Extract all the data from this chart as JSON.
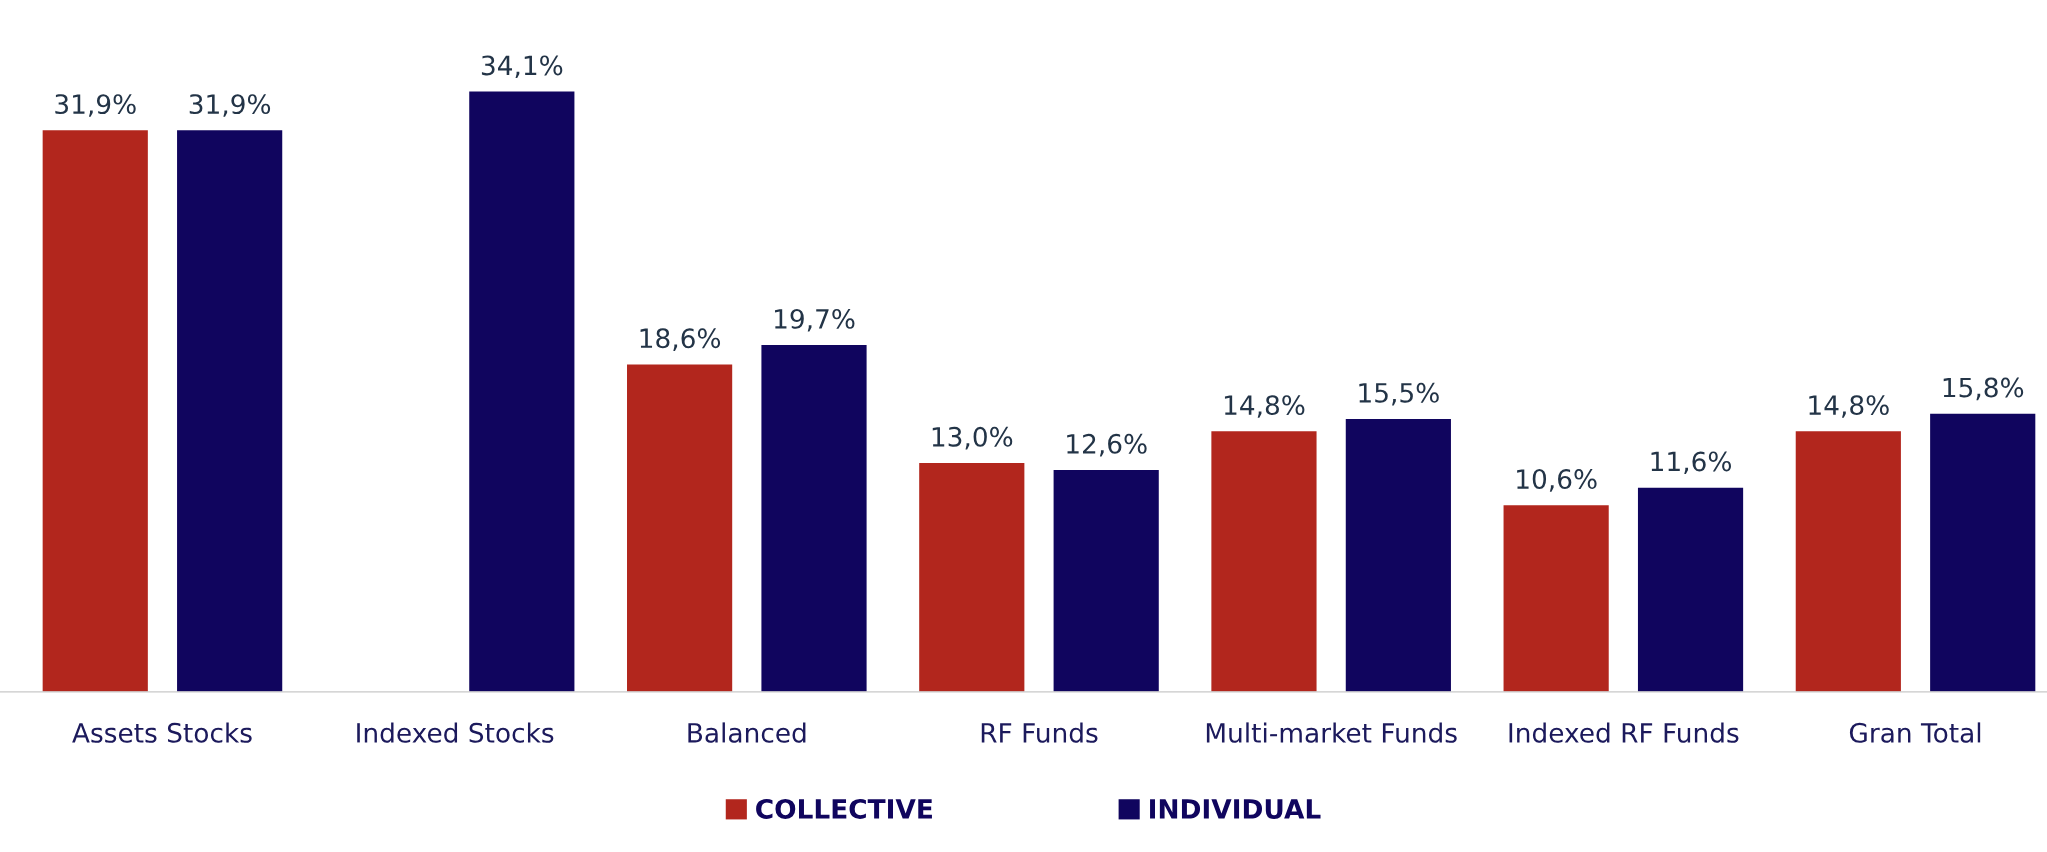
{
  "chart_data": {
    "type": "bar",
    "categories": [
      "Assets Stocks",
      "Indexed Stocks",
      "Balanced",
      "RF Funds",
      "Multi-market Funds",
      "Indexed RF Funds",
      "Gran Total"
    ],
    "series": [
      {
        "name": "COLLECTIVE",
        "color": "#b2261d",
        "values": [
          31.9,
          null,
          18.6,
          13.0,
          14.8,
          10.6,
          14.8
        ],
        "value_labels": [
          "31,9%",
          null,
          "18,6%",
          "13,0%",
          "14,8%",
          "10,6%",
          "14,8%"
        ]
      },
      {
        "name": "INDIVIDUAL",
        "color": "#10055e",
        "values": [
          31.9,
          34.1,
          19.7,
          12.6,
          15.5,
          11.6,
          15.8
        ],
        "value_labels": [
          "31,9%",
          "34,1%",
          "19,7%",
          "12,6%",
          "15,5%",
          "11,6%",
          "15,8%"
        ]
      }
    ],
    "legend": "bottom",
    "grid": false,
    "tick_labels": "x"
  }
}
